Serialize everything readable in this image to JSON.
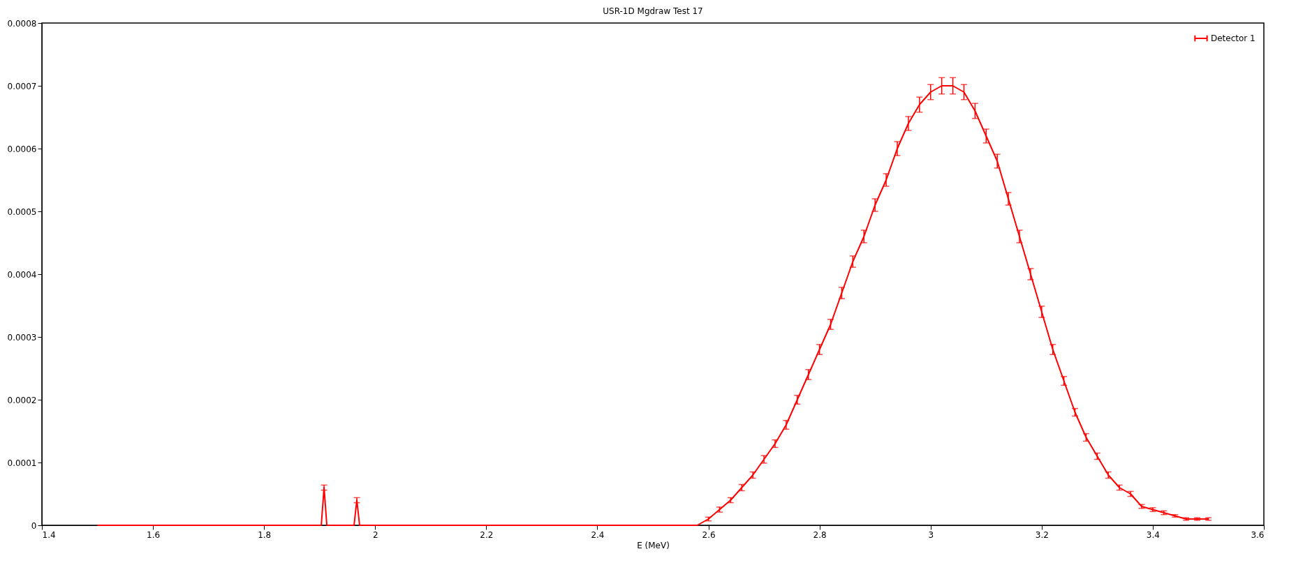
{
  "chart_data": {
    "type": "line",
    "title": "USR-1D Mgdraw Test 17",
    "xlabel": "E (MeV)",
    "xlim": [
      1.4,
      3.6
    ],
    "xticks": [
      1.4,
      1.6,
      1.8,
      2,
      2.2,
      2.4,
      2.6,
      2.8,
      3,
      3.2,
      3.4,
      3.6
    ],
    "ylim": [
      0,
      0.0008
    ],
    "yticks": [
      0,
      0.0001,
      0.0002,
      0.0003,
      0.0004,
      0.0005,
      0.0006,
      0.0007,
      0.0008
    ],
    "grid": false,
    "legend": "top right",
    "marker": "none",
    "line_style": "solid",
    "series": [
      {
        "name": "Detector 1",
        "color": "#ff0000",
        "x": [
          1.5,
          1.903,
          1.908,
          1.913,
          1.962,
          1.967,
          1.972,
          2.58,
          2.6,
          2.62,
          2.64,
          2.66,
          2.68,
          2.7,
          2.72,
          2.74,
          2.76,
          2.78,
          2.8,
          2.82,
          2.84,
          2.86,
          2.88,
          2.9,
          2.92,
          2.94,
          2.96,
          2.98,
          3,
          3.02,
          3.04,
          3.06,
          3.08,
          3.1,
          3.12,
          3.14,
          3.16,
          3.18,
          3.2,
          3.22,
          3.24,
          3.26,
          3.28,
          3.3,
          3.32,
          3.34,
          3.36,
          3.38,
          3.4,
          3.42,
          3.44,
          3.46,
          3.48,
          3.5
        ],
        "values": [
          0,
          0,
          6e-05,
          0,
          0,
          4e-05,
          0,
          0,
          1e-05,
          2.5e-05,
          4e-05,
          6e-05,
          8e-05,
          0.000105,
          0.00013,
          0.00016,
          0.0002,
          0.00024,
          0.00028,
          0.00032,
          0.00037,
          0.00042,
          0.00046,
          0.00051,
          0.00055,
          0.0006,
          0.00064,
          0.00067,
          0.00069,
          0.0007,
          0.0007,
          0.00069,
          0.00066,
          0.00062,
          0.00058,
          0.00052,
          0.00046,
          0.0004,
          0.00034,
          0.00028,
          0.00023,
          0.00018,
          0.00014,
          0.00011,
          8e-05,
          6e-05,
          5e-05,
          3e-05,
          2.5e-05,
          2e-05,
          1.5e-05,
          1e-05,
          1e-05,
          1e-05
        ],
        "errors": [
          null,
          null,
          4e-06,
          null,
          null,
          4e-06,
          null,
          null,
          3e-06,
          4e-06,
          4e-06,
          5e-06,
          5e-06,
          6e-06,
          6e-06,
          7e-06,
          7e-06,
          8e-06,
          8e-06,
          8e-06,
          9e-06,
          9e-06,
          1e-05,
          1e-05,
          1e-05,
          1.1e-05,
          1.1e-05,
          1.2e-05,
          1.2e-05,
          1.3e-05,
          1.3e-05,
          1.2e-05,
          1.2e-05,
          1.1e-05,
          1.1e-05,
          1e-05,
          1e-05,
          9e-06,
          9e-06,
          8e-06,
          7e-06,
          6e-06,
          6e-06,
          5e-06,
          5e-06,
          4e-06,
          4e-06,
          3e-06,
          3e-06,
          3e-06,
          2e-06,
          2e-06,
          2e-06,
          2e-06
        ]
      }
    ]
  }
}
